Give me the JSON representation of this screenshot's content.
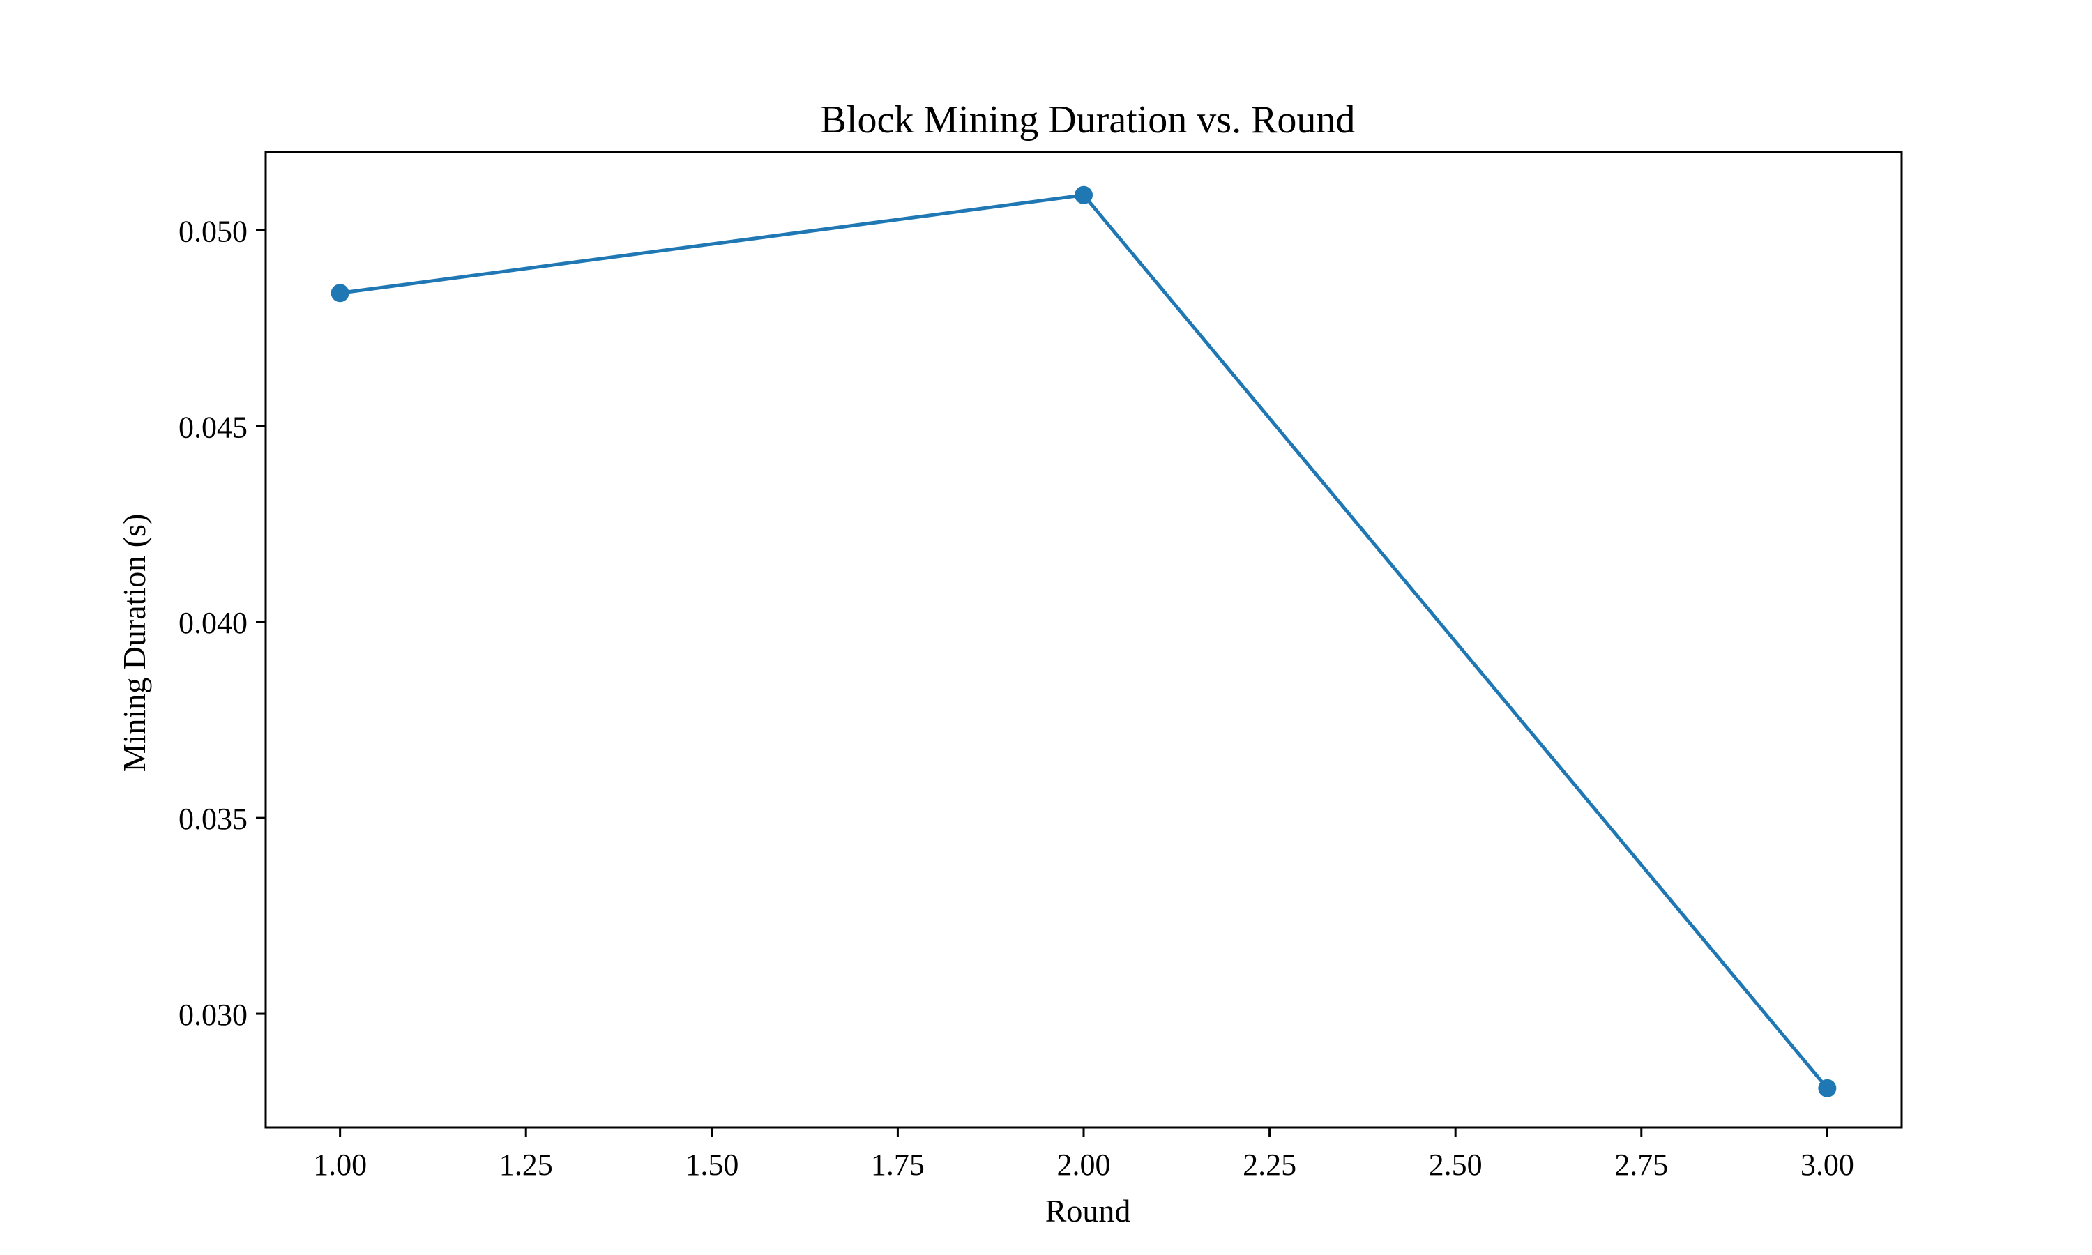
{
  "chart_data": {
    "type": "line",
    "title": "Block Mining Duration vs. Round",
    "xlabel": "Round",
    "ylabel": "Mining Duration (s)",
    "xlim": [
      0.9,
      3.1
    ],
    "ylim": [
      0.0271,
      0.052
    ],
    "xticks": [
      1.0,
      1.25,
      1.5,
      1.75,
      2.0,
      2.25,
      2.5,
      2.75,
      3.0
    ],
    "xtick_labels": [
      "1.00",
      "1.25",
      "1.50",
      "1.75",
      "2.00",
      "2.25",
      "2.50",
      "2.75",
      "3.00"
    ],
    "yticks": [
      0.03,
      0.035,
      0.04,
      0.045,
      0.05
    ],
    "ytick_labels": [
      "0.030",
      "0.035",
      "0.040",
      "0.045",
      "0.050"
    ],
    "grid": false,
    "series": [
      {
        "color": "#1f77b4",
        "marker": "circle",
        "x": [
          1,
          2,
          3
        ],
        "y": [
          0.0484,
          0.0509,
          0.0281
        ]
      }
    ]
  }
}
